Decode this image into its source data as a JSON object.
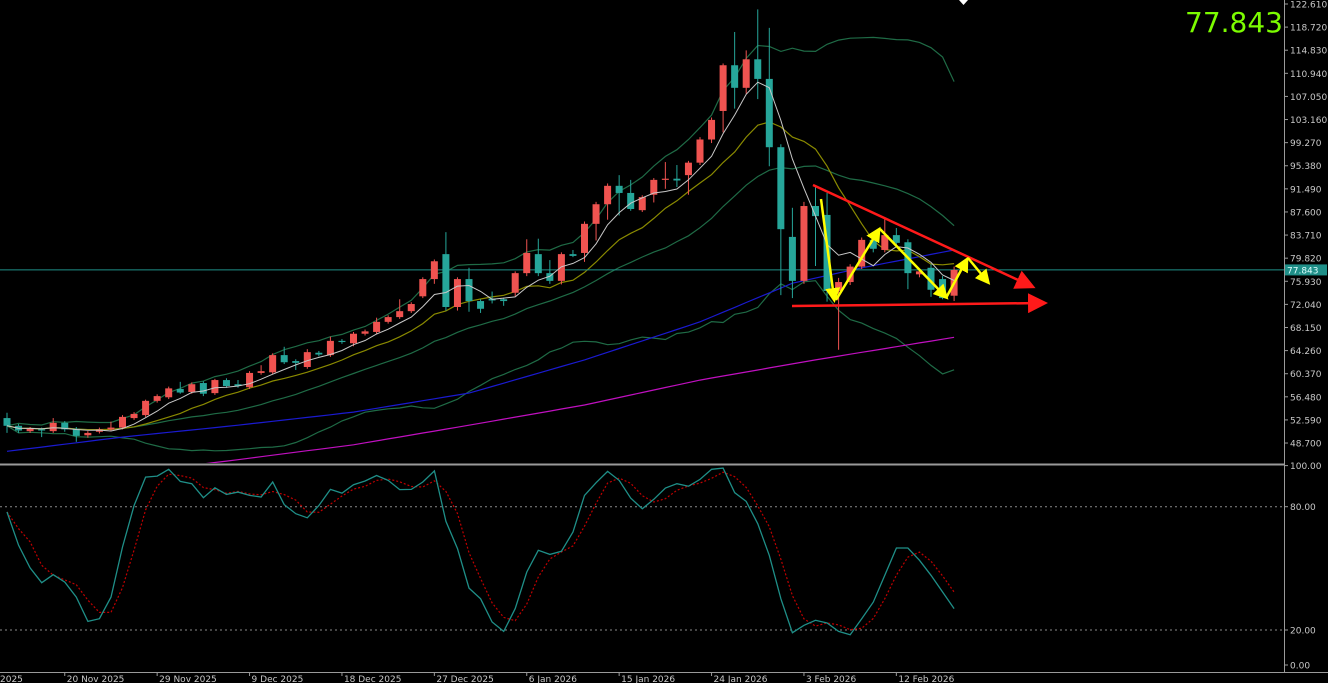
{
  "header": {
    "current_price_big": "77.843"
  },
  "current_price_label": "77.843",
  "colors": {
    "bull": "#ef5350",
    "bear": "#26a69a",
    "bollinger": "#1f6b46",
    "ma_fast": "#c8c8c8",
    "ma_mid": "#8a8a00",
    "ma_slow": "#1a1ad0",
    "ma_long": "#c010c0",
    "stoch_k": "#1f8f88",
    "stoch_d": "#c00000",
    "big_price": "#7cfc00",
    "trendline": "#ff1a1a",
    "wave": "#ffff00"
  },
  "price_axis": {
    "labels": [
      "122.610",
      "118.720",
      "114.830",
      "110.940",
      "107.050",
      "103.160",
      "99.270",
      "95.380",
      "91.490",
      "87.600",
      "83.710",
      "79.820",
      "75.930",
      "72.040",
      "68.150",
      "64.260",
      "60.370",
      "56.480",
      "52.590",
      "48.700"
    ]
  },
  "osc_axis": {
    "labels": [
      "100.00",
      "80.00",
      "20.00",
      "0.00"
    ]
  },
  "date_axis": [
    {
      "label": "2025",
      "bar": -3
    },
    {
      "label": "20 Nov 2025",
      "bar": 5
    },
    {
      "label": "29 Nov 2025",
      "bar": 13
    },
    {
      "label": "9 Dec 2025",
      "bar": 21
    },
    {
      "label": "18 Dec 2025",
      "bar": 29
    },
    {
      "label": "27 Dec 2025",
      "bar": 37
    },
    {
      "label": "6 Jan 2026",
      "bar": 45
    },
    {
      "label": "15 Jan 2026",
      "bar": 53
    },
    {
      "label": "24 Jan 2026",
      "bar": 61
    },
    {
      "label": "3 Feb 2026",
      "bar": 69
    },
    {
      "label": "12 Feb 2026",
      "bar": 77
    }
  ],
  "chart_data": {
    "type": "candlestick",
    "ylim": [
      47.0,
      122.61
    ],
    "current_price": 77.843,
    "ohlc": [
      [
        52.9,
        53.8,
        50.4,
        51.6
      ],
      [
        51.6,
        51.9,
        50.4,
        50.8
      ],
      [
        50.7,
        51.4,
        50.4,
        51.1
      ],
      [
        51.0,
        51.3,
        49.7,
        50.8
      ],
      [
        50.7,
        52.9,
        50.4,
        52.1
      ],
      [
        52.1,
        52.4,
        50.6,
        51.0
      ],
      [
        51.1,
        51.4,
        48.9,
        49.9
      ],
      [
        50.0,
        50.7,
        49.6,
        50.4
      ],
      [
        50.6,
        51.3,
        50.3,
        51.0
      ],
      [
        51.0,
        52.3,
        50.7,
        51.3
      ],
      [
        51.3,
        53.4,
        51.0,
        53.1
      ],
      [
        52.9,
        53.9,
        52.6,
        53.6
      ],
      [
        53.4,
        56.0,
        53.1,
        55.8
      ],
      [
        55.8,
        56.9,
        55.5,
        56.6
      ],
      [
        56.4,
        58.2,
        56.1,
        57.9
      ],
      [
        57.8,
        59.0,
        57.0,
        57.2
      ],
      [
        57.3,
        58.9,
        57.0,
        58.6
      ],
      [
        58.8,
        59.1,
        56.6,
        57.0
      ],
      [
        57.1,
        59.5,
        56.8,
        59.3
      ],
      [
        59.3,
        59.6,
        58.0,
        58.3
      ],
      [
        58.6,
        59.3,
        58.0,
        58.3
      ],
      [
        58.1,
        60.8,
        57.8,
        60.5
      ],
      [
        60.5,
        61.8,
        60.2,
        60.8
      ],
      [
        60.6,
        63.8,
        60.3,
        63.5
      ],
      [
        63.5,
        64.9,
        62.0,
        62.3
      ],
      [
        62.5,
        62.8,
        61.0,
        62.2
      ],
      [
        61.5,
        64.5,
        61.2,
        64.0
      ],
      [
        63.9,
        64.2,
        63.3,
        63.6
      ],
      [
        63.5,
        66.6,
        63.2,
        65.9
      ],
      [
        65.9,
        66.2,
        65.4,
        65.7
      ],
      [
        65.5,
        67.4,
        65.0,
        67.1
      ],
      [
        67.1,
        67.8,
        66.8,
        67.5
      ],
      [
        67.4,
        69.8,
        67.1,
        69.1
      ],
      [
        69.1,
        70.2,
        68.8,
        69.9
      ],
      [
        69.9,
        72.9,
        69.6,
        70.9
      ],
      [
        70.9,
        72.4,
        70.6,
        72.1
      ],
      [
        73.4,
        76.6,
        73.1,
        76.3
      ],
      [
        76.3,
        79.6,
        75.5,
        79.3
      ],
      [
        80.5,
        84.2,
        71.0,
        71.6
      ],
      [
        71.6,
        76.6,
        71.0,
        76.3
      ],
      [
        76.3,
        78.2,
        70.8,
        72.6
      ],
      [
        72.6,
        72.9,
        70.6,
        71.3
      ],
      [
        73.0,
        74.2,
        72.2,
        72.7
      ],
      [
        72.9,
        73.2,
        71.8,
        72.6
      ],
      [
        74.0,
        77.6,
        73.4,
        77.3
      ],
      [
        77.3,
        83.0,
        76.8,
        80.7
      ],
      [
        80.5,
        83.1,
        76.8,
        77.3
      ],
      [
        77.3,
        79.5,
        75.5,
        76.0
      ],
      [
        76.0,
        80.8,
        75.4,
        80.5
      ],
      [
        80.5,
        81.2,
        80.0,
        80.2
      ],
      [
        80.7,
        86.0,
        79.2,
        85.6
      ],
      [
        85.6,
        89.3,
        82.8,
        88.9
      ],
      [
        88.9,
        92.4,
        86.3,
        92.0
      ],
      [
        92.0,
        93.8,
        87.0,
        90.8
      ],
      [
        90.8,
        93.0,
        87.8,
        88.1
      ],
      [
        87.9,
        90.4,
        87.6,
        90.1
      ],
      [
        90.5,
        93.3,
        89.2,
        93.0
      ],
      [
        93.0,
        96.0,
        91.5,
        93.2
      ],
      [
        93.2,
        95.5,
        91.8,
        92.9
      ],
      [
        93.8,
        96.2,
        90.5,
        95.9
      ],
      [
        95.9,
        100.2,
        95.5,
        99.8
      ],
      [
        99.8,
        103.5,
        99.2,
        103.1
      ],
      [
        104.6,
        112.6,
        101.0,
        112.3
      ],
      [
        112.3,
        117.9,
        105.0,
        108.5
      ],
      [
        108.5,
        114.8,
        107.5,
        113.3
      ],
      [
        113.3,
        121.7,
        106.6,
        110.0
      ],
      [
        110.0,
        118.6,
        95.3,
        98.5
      ],
      [
        98.5,
        99.0,
        73.6,
        84.7
      ],
      [
        83.4,
        88.3,
        73.1,
        76.0
      ],
      [
        76.0,
        89.3,
        75.5,
        88.6
      ],
      [
        88.6,
        92.1,
        78.5,
        86.9
      ],
      [
        87.1,
        90.8,
        72.5,
        74.3
      ],
      [
        74.3,
        76.5,
        64.4,
        75.8
      ],
      [
        75.8,
        78.8,
        75.3,
        78.4
      ],
      [
        78.4,
        83.3,
        78.0,
        82.9
      ],
      [
        82.9,
        83.3,
        80.8,
        81.4
      ],
      [
        81.2,
        86.7,
        80.8,
        83.7
      ],
      [
        83.7,
        84.9,
        82.0,
        82.4
      ],
      [
        82.5,
        83.0,
        74.6,
        77.3
      ],
      [
        77.1,
        77.9,
        76.6,
        77.6
      ],
      [
        78.2,
        78.8,
        73.3,
        74.5
      ],
      [
        76.3,
        76.8,
        72.9,
        73.1
      ],
      [
        73.5,
        78.4,
        72.6,
        77.843
      ]
    ],
    "indicators": {
      "ma_fast_period": 5,
      "ma_mid_period": 10,
      "bollinger": {
        "period": 20,
        "deviation": 2
      },
      "ma_slow_knots": [
        [
          0,
          47.3
        ],
        [
          10,
          49.7
        ],
        [
          20,
          51.7
        ],
        [
          30,
          53.9
        ],
        [
          40,
          57.1
        ],
        [
          50,
          62.7
        ],
        [
          60,
          69.1
        ],
        [
          68,
          75.6
        ],
        [
          74,
          78.2
        ],
        [
          82,
          81.2
        ]
      ],
      "ma_long_knots": [
        [
          10,
          43.5
        ],
        [
          20,
          45.9
        ],
        [
          30,
          48.4
        ],
        [
          40,
          51.7
        ],
        [
          50,
          55.1
        ],
        [
          60,
          59.3
        ],
        [
          70,
          62.7
        ],
        [
          82,
          66.5
        ]
      ]
    },
    "stochastic": {
      "ylim": [
        0,
        100
      ],
      "levels": [
        80,
        20
      ],
      "k": [
        77.4,
        61.2,
        50.2,
        43,
        46.9,
        43.3,
        36,
        24.2,
        25.5,
        36,
        60.4,
        80.6,
        94.4,
        94.9,
        98.2,
        92.3,
        91.2,
        84.4,
        89.2,
        86,
        87.1,
        85.5,
        84.7,
        92,
        81,
        76.6,
        74.6,
        80.6,
        88.4,
        86.6,
        90.7,
        92.5,
        95.2,
        92.8,
        88.3,
        88.4,
        92,
        97.4,
        72.9,
        59.6,
        40.4,
        35.2,
        23.9,
        19.3,
        30.4,
        48.2,
        58.8,
        56.8,
        58.3,
        67.7,
        85.5,
        91.7,
        97.2,
        92.8,
        84.2,
        79,
        83.6,
        89.1,
        91.2,
        90,
        93.3,
        98.2,
        98.8,
        86.8,
        82.6,
        71.7,
        56.3,
        35.2,
        18.7,
        22.3,
        24.7,
        23.4,
        19.3,
        17.7,
        25.5,
        33.6,
        46.6,
        59.9,
        59.9,
        53.9,
        46.6,
        38.5,
        30.4
      ],
      "d_period": 3
    }
  }
}
